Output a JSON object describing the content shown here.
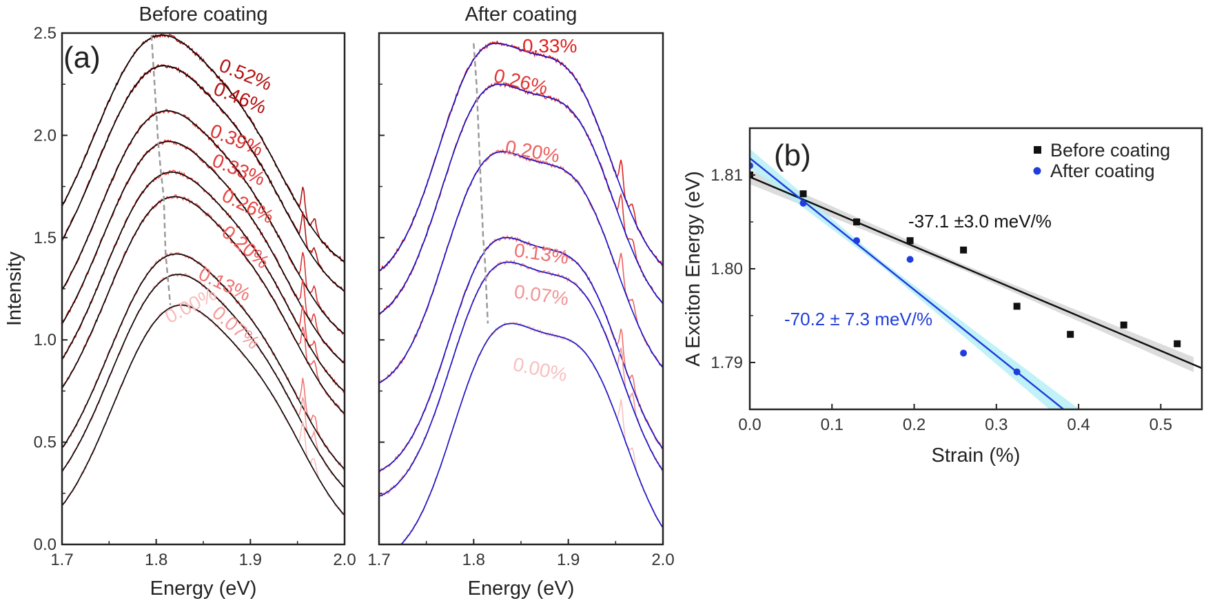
{
  "panel_a": {
    "before_title": "Before coating",
    "after_title": "After coating",
    "label": "(a)",
    "ylabel": "Intensity",
    "xlabel": "Energy (eV)"
  },
  "panel_b": {
    "label": "(b)",
    "ylabel": "A Exciton Energy (eV)",
    "xlabel": "Strain (%)"
  },
  "chart_data": [
    {
      "type": "line",
      "title": "Before coating",
      "xlabel": "Energy (eV)",
      "ylabel": "Intensity",
      "xlim": [
        1.7,
        2.0
      ],
      "ylim": [
        0.0,
        2.5
      ],
      "xticks": [
        "1.7",
        "1.8",
        "1.9",
        "2.0"
      ],
      "yticks": [
        "0.0",
        "0.5",
        "1.0",
        "1.5",
        "2.0",
        "2.5"
      ],
      "fit_color": "#000000",
      "peak_line_color": "#999999",
      "series": [
        {
          "strain_label": "0.52%",
          "peak_x": 1.795,
          "peak_y": 2.49,
          "color": "#b31212"
        },
        {
          "strain_label": "0.46%",
          "peak_x": 1.797,
          "peak_y": 2.34,
          "color": "#b31212"
        },
        {
          "strain_label": "0.39%",
          "peak_x": 1.8,
          "peak_y": 2.12,
          "color": "#d93030"
        },
        {
          "strain_label": "0.33%",
          "peak_x": 1.802,
          "peak_y": 1.97,
          "color": "#e23a3a"
        },
        {
          "strain_label": "0.26%",
          "peak_x": 1.805,
          "peak_y": 1.82,
          "color": "#e8453f"
        },
        {
          "strain_label": "0.20%",
          "peak_x": 1.808,
          "peak_y": 1.7,
          "color": "#ec5a5a"
        },
        {
          "strain_label": "0.13%",
          "peak_x": 1.81,
          "peak_y": 1.42,
          "color": "#f07575"
        },
        {
          "strain_label": "0.07%",
          "peak_x": 1.812,
          "peak_y": 1.32,
          "color": "#f49a9a"
        },
        {
          "strain_label": "0.00%",
          "peak_x": 1.815,
          "peak_y": 1.17,
          "color": "#f8bcbc"
        }
      ]
    },
    {
      "type": "line",
      "title": "After coating",
      "xlabel": "Energy (eV)",
      "xlim": [
        1.7,
        2.0
      ],
      "ylim": [
        0.0,
        2.5
      ],
      "xticks": [
        "1.7",
        "1.8",
        "1.9",
        "2.0"
      ],
      "fit_color": "#1010cc",
      "peak_line_color": "#999999",
      "series": [
        {
          "strain_label": "0.33%",
          "peak_x": 1.8,
          "peak_y": 2.45,
          "color": "#e02020"
        },
        {
          "strain_label": "0.26%",
          "peak_x": 1.803,
          "peak_y": 2.25,
          "color": "#e03535"
        },
        {
          "strain_label": "0.20%",
          "peak_x": 1.806,
          "peak_y": 1.92,
          "color": "#ec6060"
        },
        {
          "strain_label": "0.13%",
          "peak_x": 1.81,
          "peak_y": 1.5,
          "color": "#ee7070"
        },
        {
          "strain_label": "0.07%",
          "peak_x": 1.812,
          "peak_y": 1.38,
          "color": "#f29595"
        },
        {
          "strain_label": "0.00%",
          "peak_x": 1.815,
          "peak_y": 1.08,
          "color": "#f8c0c0"
        }
      ]
    },
    {
      "type": "scatter",
      "xlabel": "Strain (%)",
      "ylabel": "A Exciton Energy (eV)",
      "xlim": [
        0.0,
        0.55
      ],
      "ylim": [
        1.785,
        1.815
      ],
      "xticks": [
        "0.0",
        "0.1",
        "0.2",
        "0.3",
        "0.4",
        "0.5"
      ],
      "yticks": [
        "1.79",
        "1.80",
        "1.81"
      ],
      "legend_position": "top-right",
      "series": [
        {
          "name": "Before coating",
          "marker": "square",
          "color": "#111111",
          "x": [
            0.0,
            0.065,
            0.13,
            0.195,
            0.26,
            0.325,
            0.39,
            0.455,
            0.52
          ],
          "y": [
            1.81,
            1.808,
            1.805,
            1.803,
            1.802,
            1.796,
            1.793,
            1.794,
            1.792
          ],
          "fit": {
            "intercept": 1.8098,
            "slope_per_percent": -0.0371,
            "label": "-37.1 ±3.0 meV/%",
            "band_color": "#d6d6d6"
          }
        },
        {
          "name": "After coating",
          "marker": "circle",
          "color": "#1f3ddb",
          "x": [
            0.0,
            0.065,
            0.13,
            0.195,
            0.26,
            0.325
          ],
          "y": [
            1.811,
            1.807,
            1.803,
            1.801,
            1.791,
            1.789
          ],
          "fit": {
            "intercept": 1.8118,
            "slope_per_percent": -0.0702,
            "label": "-70.2 ± 7.3 meV/%",
            "band_color": "#b6f0f6"
          }
        }
      ]
    }
  ]
}
